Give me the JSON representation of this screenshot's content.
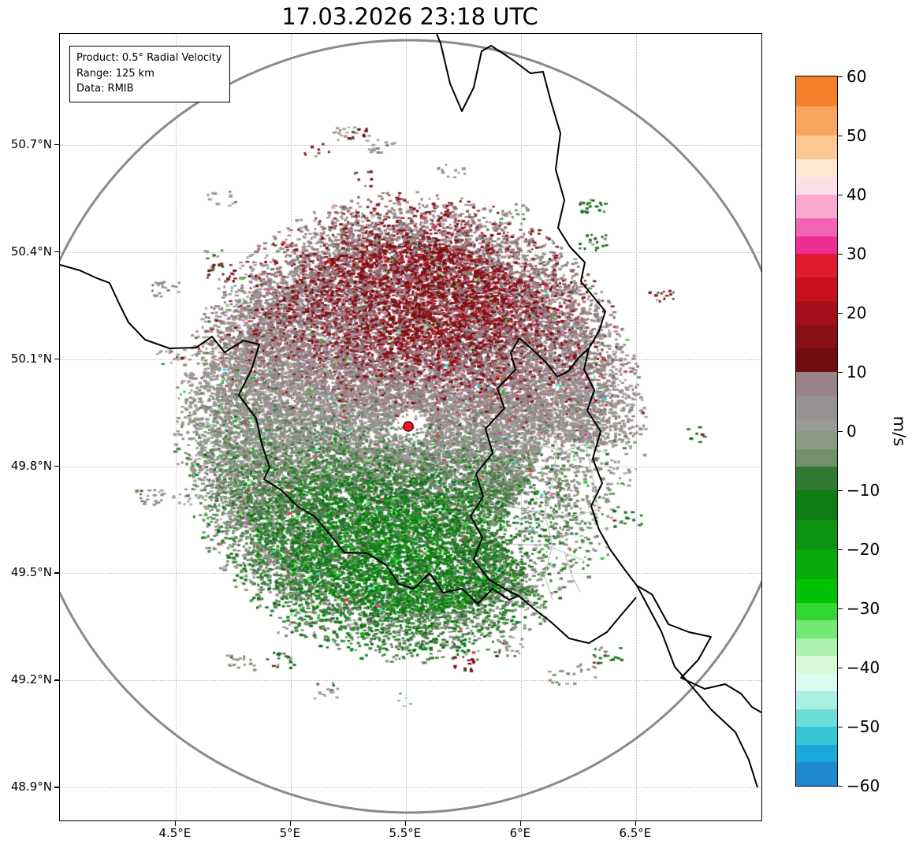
{
  "title": "17.03.2026 23:18 UTC",
  "info_box": {
    "lines": [
      "Product: 0.5° Radial Velocity",
      "Range: 125 km",
      "Data: RMIB"
    ]
  },
  "axes": {
    "y_ticks": [
      {
        "label": "50.7°N",
        "value": 50.7
      },
      {
        "label": "50.4°N",
        "value": 50.4
      },
      {
        "label": "50.1°N",
        "value": 50.1
      },
      {
        "label": "49.8°N",
        "value": 49.8
      },
      {
        "label": "49.5°N",
        "value": 49.5
      },
      {
        "label": "49.2°N",
        "value": 49.2
      },
      {
        "label": "48.9°N",
        "value": 48.9
      }
    ],
    "x_ticks": [
      {
        "label": "4.5°E",
        "value": 4.5
      },
      {
        "label": "5°E",
        "value": 5.0
      },
      {
        "label": "5.5°E",
        "value": 5.5
      },
      {
        "label": "6°E",
        "value": 6.0
      },
      {
        "label": "6.5°E",
        "value": 6.5
      }
    ]
  },
  "colorbar": {
    "unit": "m/s",
    "ticks": [
      {
        "label": "60",
        "value": 60
      },
      {
        "label": "50",
        "value": 50
      },
      {
        "label": "40",
        "value": 40
      },
      {
        "label": "30",
        "value": 30
      },
      {
        "label": "20",
        "value": 20
      },
      {
        "label": "10",
        "value": 10
      },
      {
        "label": "0",
        "value": 0
      },
      {
        "label": "−10",
        "value": -10
      },
      {
        "label": "−20",
        "value": -20
      },
      {
        "label": "−30",
        "value": -30
      },
      {
        "label": "−40",
        "value": -40
      },
      {
        "label": "−50",
        "value": -50
      },
      {
        "label": "−60",
        "value": -60
      }
    ],
    "segments": [
      {
        "from": 60,
        "to": 55,
        "color": "#f5812c"
      },
      {
        "from": 55,
        "to": 50,
        "color": "#f9a75e"
      },
      {
        "from": 50,
        "to": 46,
        "color": "#fcc795"
      },
      {
        "from": 46,
        "to": 43,
        "color": "#fde9d4"
      },
      {
        "from": 43,
        "to": 40,
        "color": "#fbdfe9"
      },
      {
        "from": 40,
        "to": 36,
        "color": "#f9a8d0"
      },
      {
        "from": 36,
        "to": 33,
        "color": "#f463b2"
      },
      {
        "from": 33,
        "to": 30,
        "color": "#ee2d95"
      },
      {
        "from": 30,
        "to": 26,
        "color": "#e31b31"
      },
      {
        "from": 26,
        "to": 22,
        "color": "#c61020"
      },
      {
        "from": 22,
        "to": 18,
        "color": "#a50f1a"
      },
      {
        "from": 18,
        "to": 14,
        "color": "#891015"
      },
      {
        "from": 14,
        "to": 10,
        "color": "#6e0c12"
      },
      {
        "from": 10,
        "to": 6,
        "color": "#9a8289"
      },
      {
        "from": 6,
        "to": 2,
        "color": "#979094"
      },
      {
        "from": 2,
        "to": 0,
        "color": "#999a97"
      },
      {
        "from": 0,
        "to": -3,
        "color": "#8b9a85"
      },
      {
        "from": -3,
        "to": -6,
        "color": "#73906b"
      },
      {
        "from": -6,
        "to": -10,
        "color": "#2f7a33"
      },
      {
        "from": -10,
        "to": -15,
        "color": "#107c14"
      },
      {
        "from": -15,
        "to": -20,
        "color": "#0c9310"
      },
      {
        "from": -20,
        "to": -25,
        "color": "#07aa08"
      },
      {
        "from": -25,
        "to": -29,
        "color": "#03c204"
      },
      {
        "from": -29,
        "to": -32,
        "color": "#33d633"
      },
      {
        "from": -32,
        "to": -35,
        "color": "#74e874"
      },
      {
        "from": -35,
        "to": -38,
        "color": "#aff2af"
      },
      {
        "from": -38,
        "to": -41,
        "color": "#d9f9d9"
      },
      {
        "from": -41,
        "to": -44,
        "color": "#dcfaef"
      },
      {
        "from": -44,
        "to": -47,
        "color": "#abeee4"
      },
      {
        "from": -47,
        "to": -50,
        "color": "#6cdcd6"
      },
      {
        "from": -50,
        "to": -53,
        "color": "#35c6d4"
      },
      {
        "from": -53,
        "to": -56,
        "color": "#1ba9dc"
      },
      {
        "from": -56,
        "to": -60,
        "color": "#1f8ad2"
      }
    ]
  },
  "chart_data": {
    "type": "heatmap",
    "title": "17.03.2026 23:18 UTC",
    "product": "0.5° Radial Velocity",
    "range_km": 125,
    "source": "RMIB",
    "unit": "m/s",
    "x_tick_labels": [
      "4.5°E",
      "5°E",
      "5.5°E",
      "6°E",
      "6.5°E"
    ],
    "y_tick_labels": [
      "50.7°N",
      "50.4°N",
      "50.1°N",
      "49.8°N",
      "49.5°N",
      "49.2°N",
      "48.9°N"
    ],
    "xlim_deg_e": [
      4.0,
      7.05
    ],
    "ylim_deg_n": [
      48.81,
      51.01
    ],
    "colorbar_range": [
      -60,
      60
    ],
    "colorbar_tick_values": [
      60,
      50,
      40,
      30,
      20,
      10,
      0,
      -10,
      -20,
      -30,
      -40,
      -50,
      -60
    ],
    "radar_marker": {
      "lon_deg": 5.5,
      "lat_deg": 49.9
    },
    "range_ring_km": 125,
    "pattern": "Doppler radial velocity field centered on the radar: positive (dark red, ~+10 to +20 m/s) outbound velocities north/north-east of the radar, negative (green, ~−10 to −20 m/s) inbound velocities south/south-west, grey near-zero band east–west and around the radar, with scattered speckle noise (pink, bright green, cyan outliers); data mostly within ~75 km of the site, sparse clutter patches beyond."
  }
}
